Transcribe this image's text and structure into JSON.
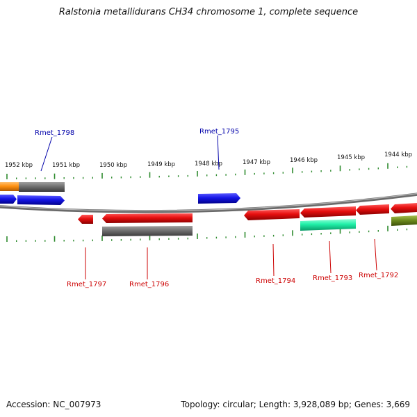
{
  "title": "Ralstonia metallidurans CH34 chromosome 1, complete sequence",
  "footer": {
    "accession": "Accession: NC_007973",
    "topology": "Topology: circular; Length: 3,928,089 bp; Genes: 3,669"
  },
  "ruler": {
    "unit": "kbp",
    "labels": [
      "1952 kbp",
      "1951 kbp",
      "1950 kbp",
      "1949 kbp",
      "1948 kbp",
      "1947 kbp",
      "1946 kbp",
      "1945 kbp",
      "1944 kbp"
    ],
    "tick_color": "#2e8b2e"
  },
  "genes": [
    {
      "name": "Rmet_1798",
      "strand": "+",
      "label_color": "#0000aa"
    },
    {
      "name": "Rmet_1797",
      "strand": "-",
      "label_color": "#cc0000"
    },
    {
      "name": "Rmet_1796",
      "strand": "-",
      "label_color": "#cc0000"
    },
    {
      "name": "Rmet_1795",
      "strand": "+",
      "label_color": "#0000aa"
    },
    {
      "name": "Rmet_1794",
      "strand": "-",
      "label_color": "#cc0000"
    },
    {
      "name": "Rmet_1793",
      "strand": "-",
      "label_color": "#cc0000"
    },
    {
      "name": "Rmet_1792",
      "strand": "-",
      "label_color": "#cc0000"
    }
  ],
  "colors": {
    "backbone": "#8a8a8a",
    "forward_gene": "#1515e6",
    "reverse_gene": "#e60f0f",
    "orange_feature": "#ff9010",
    "gray_feature": "#707070",
    "teal_feature": "#20f0a8",
    "olive_feature": "#6e8c1e"
  }
}
